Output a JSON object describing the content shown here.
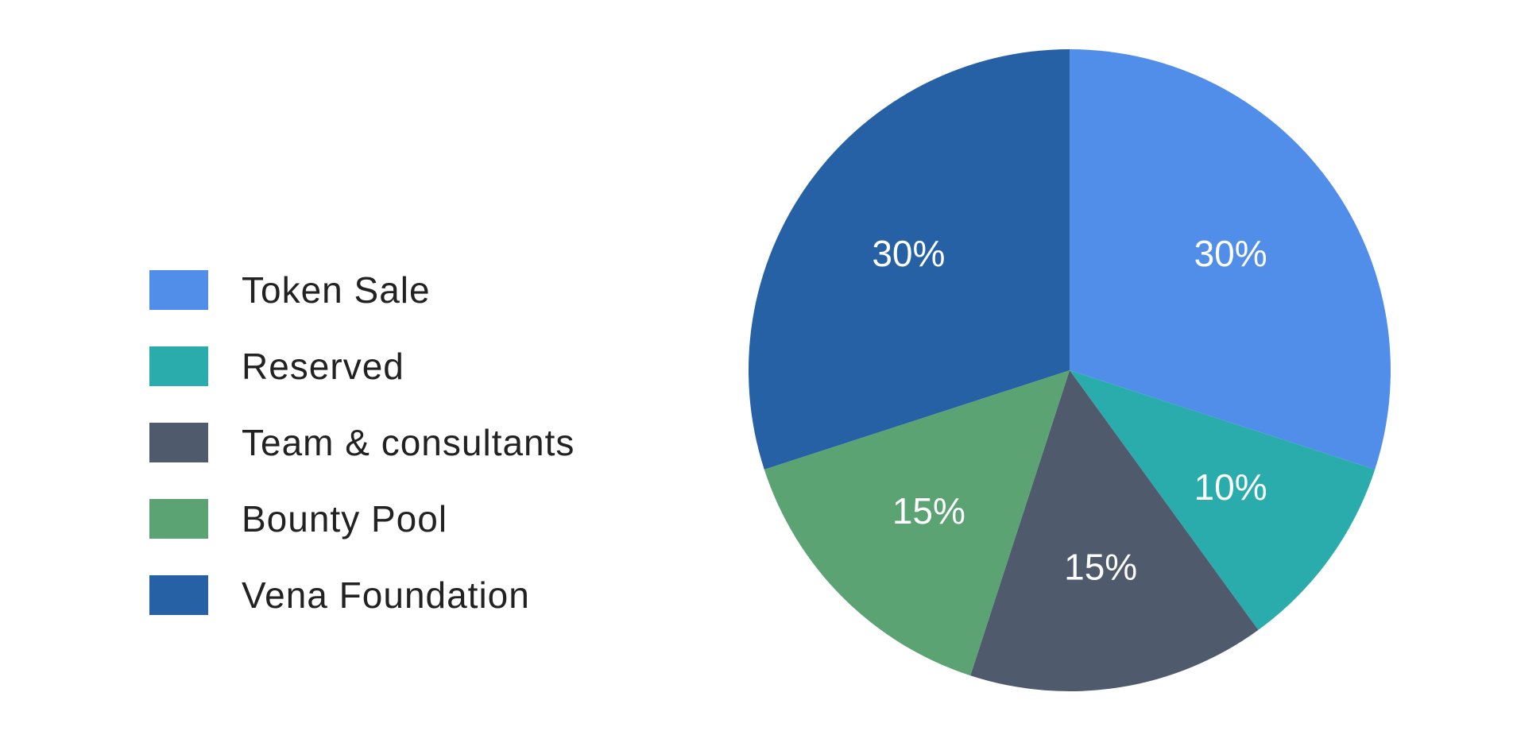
{
  "chart_data": {
    "type": "pie",
    "title": "",
    "legend_position": "left",
    "slices": [
      {
        "label": "Token Sale",
        "value": 30,
        "value_label": "30%",
        "color": "#518eea"
      },
      {
        "label": "Reserved",
        "value": 10,
        "value_label": "10%",
        "color": "#2aacad"
      },
      {
        "label": "Team & consultants",
        "value": 15,
        "value_label": "15%",
        "color": "#4f5b6d"
      },
      {
        "label": "Bounty Pool",
        "value": 15,
        "value_label": "15%",
        "color": "#5ca374"
      },
      {
        "label": "Vena Foundation",
        "value": 30,
        "value_label": "30%",
        "color": "#2661a5"
      }
    ]
  }
}
